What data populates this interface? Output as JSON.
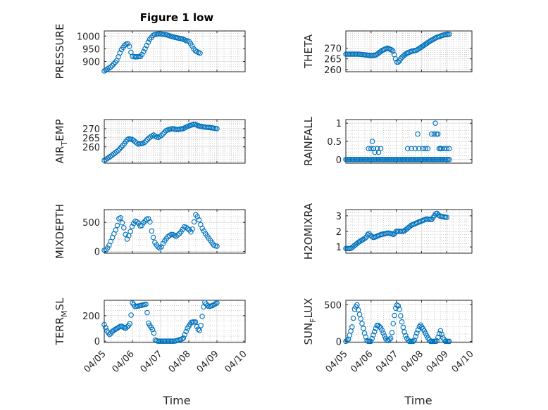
{
  "figure": {
    "title": "Figure 1 low",
    "xlabel": "Time"
  },
  "colors": {
    "marker": "#0072BD",
    "axis": "#262626",
    "grid": "#dcdcdc",
    "minor_grid": "#b0b0b0"
  },
  "chart_data": [
    {
      "type": "scatter",
      "ylabel_text": "PRESSURE",
      "ylabel_sub": "",
      "ylim": [
        860,
        1020
      ],
      "yticks": [
        900,
        950,
        1000
      ],
      "xlim": [
        0,
        5
      ],
      "xticks": [
        0,
        1,
        2,
        3,
        4,
        5
      ],
      "xtick_labels": [
        "04/05",
        "04/06",
        "04/07",
        "04/08",
        "04/09",
        "04/10"
      ],
      "show_xtick_labels": false,
      "curve": [
        [
          0,
          863
        ],
        [
          0.25,
          880
        ],
        [
          0.45,
          905
        ],
        [
          0.6,
          945
        ],
        [
          0.75,
          968
        ],
        [
          0.85,
          970
        ],
        [
          0.9,
          958
        ],
        [
          0.95,
          935
        ],
        [
          1.0,
          920
        ],
        [
          1.1,
          918
        ],
        [
          1.3,
          920
        ],
        [
          1.45,
          950
        ],
        [
          1.6,
          985
        ],
        [
          1.75,
          1005
        ],
        [
          1.95,
          1009
        ],
        [
          2.2,
          1005
        ],
        [
          2.5,
          995
        ],
        [
          2.8,
          988
        ],
        [
          2.9,
          982
        ],
        [
          3.0,
          980
        ],
        [
          3.1,
          965
        ],
        [
          3.2,
          945
        ],
        [
          3.35,
          935
        ],
        [
          3.4,
          933
        ]
      ],
      "x_range": [
        0.0,
        3.4
      ],
      "count": 62
    },
    {
      "type": "scatter",
      "ylabel_text": "THETA",
      "ylabel_sub": "",
      "ylim": [
        259,
        278
      ],
      "yticks": [
        260,
        265,
        270
      ],
      "xlim": [
        0,
        5
      ],
      "xticks": [
        0,
        1,
        2,
        3,
        4,
        5
      ],
      "xtick_labels": [
        "04/05",
        "04/06",
        "04/07",
        "04/08",
        "04/09",
        "04/10"
      ],
      "show_xtick_labels": false,
      "curve": [
        [
          0,
          267.2
        ],
        [
          0.5,
          267.2
        ],
        [
          0.8,
          266.8
        ],
        [
          1.0,
          266.5
        ],
        [
          1.2,
          266.8
        ],
        [
          1.45,
          269.0
        ],
        [
          1.65,
          270.0
        ],
        [
          1.85,
          269.0
        ],
        [
          1.95,
          266.0
        ],
        [
          2.0,
          263.5
        ],
        [
          2.1,
          263.5
        ],
        [
          2.2,
          265.5
        ],
        [
          2.4,
          267.5
        ],
        [
          2.6,
          268.5
        ],
        [
          2.8,
          269.0
        ],
        [
          3.0,
          270.5
        ],
        [
          3.3,
          273.0
        ],
        [
          3.6,
          275.0
        ],
        [
          3.9,
          276.2
        ],
        [
          4.1,
          276.5
        ]
      ],
      "x_range": [
        0.0,
        4.1
      ],
      "count": 78
    },
    {
      "type": "scatter",
      "ylabel_text": "AIR",
      "ylabel_sub": "T",
      "ylabel_rest": "EMP",
      "ylim": [
        251,
        275
      ],
      "yticks": [
        260,
        265,
        270
      ],
      "xlim": [
        0,
        5
      ],
      "xticks": [
        0,
        1,
        2,
        3,
        4,
        5
      ],
      "xtick_labels": [
        "04/05",
        "04/06",
        "04/07",
        "04/08",
        "04/09",
        "04/10"
      ],
      "show_xtick_labels": false,
      "curve": [
        [
          0,
          252.5
        ],
        [
          0.2,
          254.5
        ],
        [
          0.5,
          258.0
        ],
        [
          0.7,
          261.5
        ],
        [
          0.85,
          264.5
        ],
        [
          1.0,
          264.0
        ],
        [
          1.2,
          261.5
        ],
        [
          1.4,
          262.0
        ],
        [
          1.6,
          265.0
        ],
        [
          1.75,
          266.5
        ],
        [
          1.9,
          265.0
        ],
        [
          2.05,
          266.5
        ],
        [
          2.2,
          269.0
        ],
        [
          2.4,
          270.0
        ],
        [
          2.6,
          269.5
        ],
        [
          2.8,
          270.0
        ],
        [
          3.0,
          271.5
        ],
        [
          3.2,
          272.5
        ],
        [
          3.35,
          271.5
        ],
        [
          3.5,
          271.0
        ],
        [
          3.8,
          270.5
        ],
        [
          4.0,
          270.0
        ]
      ],
      "x_range": [
        0.0,
        4.0
      ],
      "count": 74
    },
    {
      "type": "scatter",
      "ylabel_text": "RAINFALL",
      "ylabel_sub": "",
      "ylim": [
        -0.1,
        1.1
      ],
      "yticks": [
        0,
        0.5,
        1
      ],
      "xlim": [
        0,
        5
      ],
      "xticks": [
        0,
        1,
        2,
        3,
        4,
        5
      ],
      "xtick_labels": [
        "04/05",
        "04/06",
        "04/07",
        "04/08",
        "04/09",
        "04/10"
      ],
      "show_xtick_labels": false,
      "zero_range": [
        0.0,
        4.1
      ],
      "count": 80,
      "nonzero": [
        [
          0.9,
          0.3
        ],
        [
          1.0,
          0.3
        ],
        [
          1.05,
          0.5
        ],
        [
          1.1,
          0.3
        ],
        [
          1.15,
          0.2
        ],
        [
          1.25,
          0.3
        ],
        [
          1.3,
          0.2
        ],
        [
          1.38,
          0.3
        ],
        [
          2.45,
          0.3
        ],
        [
          2.6,
          0.3
        ],
        [
          2.75,
          0.3
        ],
        [
          2.85,
          0.7
        ],
        [
          2.9,
          0.3
        ],
        [
          3.05,
          0.3
        ],
        [
          3.15,
          0.3
        ],
        [
          3.25,
          0.3
        ],
        [
          3.4,
          0.7
        ],
        [
          3.5,
          0.7
        ],
        [
          3.55,
          1.0
        ],
        [
          3.6,
          0.7
        ],
        [
          3.65,
          0.7
        ],
        [
          3.7,
          0.3
        ],
        [
          3.75,
          0.3
        ],
        [
          3.8,
          0.3
        ],
        [
          3.9,
          0.3
        ],
        [
          4.0,
          0.3
        ],
        [
          4.1,
          0.3
        ]
      ]
    },
    {
      "type": "scatter",
      "ylabel_text": "MIXDEPTH",
      "ylabel_sub": "",
      "ylim": [
        -30,
        720
      ],
      "yticks": [
        0,
        500
      ],
      "xlim": [
        0,
        5
      ],
      "xticks": [
        0,
        1,
        2,
        3,
        4,
        5
      ],
      "xtick_labels": [
        "04/05",
        "04/06",
        "04/07",
        "04/08",
        "04/09",
        "04/10"
      ],
      "show_xtick_labels": false,
      "curve": [
        [
          0.05,
          20
        ],
        [
          0.15,
          80
        ],
        [
          0.3,
          250
        ],
        [
          0.45,
          420
        ],
        [
          0.55,
          620
        ],
        [
          0.6,
          550
        ],
        [
          0.7,
          400
        ],
        [
          0.8,
          200
        ],
        [
          0.9,
          300
        ],
        [
          1.0,
          450
        ],
        [
          1.1,
          520
        ],
        [
          1.2,
          500
        ],
        [
          1.3,
          420
        ],
        [
          1.4,
          500
        ],
        [
          1.5,
          550
        ],
        [
          1.6,
          570
        ],
        [
          1.7,
          300
        ],
        [
          1.8,
          150
        ],
        [
          1.9,
          80
        ],
        [
          2.0,
          50
        ],
        [
          2.1,
          150
        ],
        [
          2.25,
          250
        ],
        [
          2.4,
          300
        ],
        [
          2.55,
          260
        ],
        [
          2.7,
          320
        ],
        [
          2.85,
          430
        ],
        [
          3.0,
          380
        ],
        [
          3.1,
          320
        ],
        [
          3.25,
          640
        ],
        [
          3.35,
          560
        ],
        [
          3.45,
          420
        ],
        [
          3.6,
          300
        ],
        [
          3.75,
          200
        ],
        [
          3.9,
          100
        ],
        [
          4.0,
          90
        ]
      ],
      "x_range": [
        0.0,
        4.0
      ],
      "count": 70
    },
    {
      "type": "scatter",
      "ylabel_text": "H2OMIXRA",
      "ylabel_sub": "",
      "ylim": [
        0.6,
        3.4
      ],
      "yticks": [
        1,
        2,
        3
      ],
      "xlim": [
        0,
        5
      ],
      "xticks": [
        0,
        1,
        2,
        3,
        4,
        5
      ],
      "xtick_labels": [
        "04/05",
        "04/06",
        "04/07",
        "04/08",
        "04/09",
        "04/10"
      ],
      "show_xtick_labels": false,
      "curve": [
        [
          0,
          0.9
        ],
        [
          0.2,
          0.9
        ],
        [
          0.5,
          1.3
        ],
        [
          0.8,
          1.6
        ],
        [
          0.9,
          1.9
        ],
        [
          1.0,
          1.7
        ],
        [
          1.1,
          1.6
        ],
        [
          1.4,
          1.8
        ],
        [
          1.7,
          1.9
        ],
        [
          1.9,
          1.8
        ],
        [
          2.0,
          2.0
        ],
        [
          2.3,
          2.0
        ],
        [
          2.6,
          2.4
        ],
        [
          2.9,
          2.6
        ],
        [
          3.2,
          2.8
        ],
        [
          3.4,
          2.75
        ],
        [
          3.55,
          3.1
        ],
        [
          3.6,
          3.2
        ],
        [
          3.7,
          3.0
        ],
        [
          3.8,
          2.95
        ],
        [
          4.0,
          2.9
        ]
      ],
      "x_range": [
        0.0,
        4.0
      ],
      "count": 75
    },
    {
      "type": "scatter",
      "ylabel_text": "TERR",
      "ylabel_sub": "M",
      "ylabel_rest": "SL",
      "ylim": [
        -10,
        320
      ],
      "yticks": [
        0,
        200
      ],
      "xlim": [
        0,
        5
      ],
      "xticks": [
        0,
        1,
        2,
        3,
        4,
        5
      ],
      "xtick_labels": [
        "04/05",
        "04/06",
        "04/07",
        "04/08",
        "04/09",
        "04/10"
      ],
      "show_xtick_labels": true,
      "curve": [
        [
          0,
          130
        ],
        [
          0.1,
          80
        ],
        [
          0.2,
          50
        ],
        [
          0.3,
          80
        ],
        [
          0.45,
          100
        ],
        [
          0.6,
          120
        ],
        [
          0.75,
          100
        ],
        [
          0.9,
          130
        ],
        [
          0.95,
          200
        ],
        [
          1.0,
          300
        ],
        [
          1.1,
          270
        ],
        [
          1.3,
          280
        ],
        [
          1.5,
          290
        ],
        [
          1.55,
          150
        ],
        [
          1.6,
          130
        ],
        [
          1.75,
          80
        ],
        [
          1.8,
          10
        ],
        [
          1.9,
          0
        ],
        [
          2.5,
          0
        ],
        [
          2.8,
          20
        ],
        [
          2.95,
          100
        ],
        [
          3.1,
          150
        ],
        [
          3.25,
          150
        ],
        [
          3.3,
          100
        ],
        [
          3.4,
          80
        ],
        [
          3.5,
          230
        ],
        [
          3.55,
          310
        ],
        [
          3.7,
          270
        ],
        [
          3.85,
          280
        ],
        [
          4.0,
          300
        ]
      ],
      "x_range": [
        0.0,
        4.0
      ],
      "count": 85
    },
    {
      "type": "scatter",
      "ylabel_text": "SUN",
      "ylabel_sub": "F",
      "ylabel_rest": "LUX",
      "ylim": [
        -15,
        560
      ],
      "yticks": [
        0,
        500
      ],
      "xlim": [
        0,
        5
      ],
      "xticks": [
        0,
        1,
        2,
        3,
        4,
        5
      ],
      "xtick_labels": [
        "04/05",
        "04/06",
        "04/07",
        "04/08",
        "04/09",
        "04/10"
      ],
      "show_xtick_labels": true,
      "curve": [
        [
          0,
          0
        ],
        [
          0.1,
          30
        ],
        [
          0.25,
          200
        ],
        [
          0.35,
          450
        ],
        [
          0.45,
          500
        ],
        [
          0.5,
          420
        ],
        [
          0.6,
          300
        ],
        [
          0.75,
          100
        ],
        [
          0.85,
          0
        ],
        [
          1.0,
          0
        ],
        [
          1.1,
          100
        ],
        [
          1.25,
          230
        ],
        [
          1.4,
          180
        ],
        [
          1.55,
          60
        ],
        [
          1.65,
          0
        ],
        [
          1.8,
          50
        ],
        [
          1.9,
          300
        ],
        [
          2.0,
          500
        ],
        [
          2.1,
          480
        ],
        [
          2.2,
          300
        ],
        [
          2.3,
          150
        ],
        [
          2.4,
          50
        ],
        [
          2.5,
          0
        ],
        [
          2.7,
          0
        ],
        [
          2.8,
          100
        ],
        [
          2.95,
          230
        ],
        [
          3.1,
          150
        ],
        [
          3.25,
          50
        ],
        [
          3.35,
          0
        ],
        [
          3.6,
          0
        ],
        [
          3.75,
          150
        ],
        [
          3.85,
          50
        ],
        [
          3.95,
          0
        ],
        [
          4.1,
          0
        ]
      ],
      "x_range": [
        0.0,
        4.1
      ],
      "count": 84
    }
  ]
}
